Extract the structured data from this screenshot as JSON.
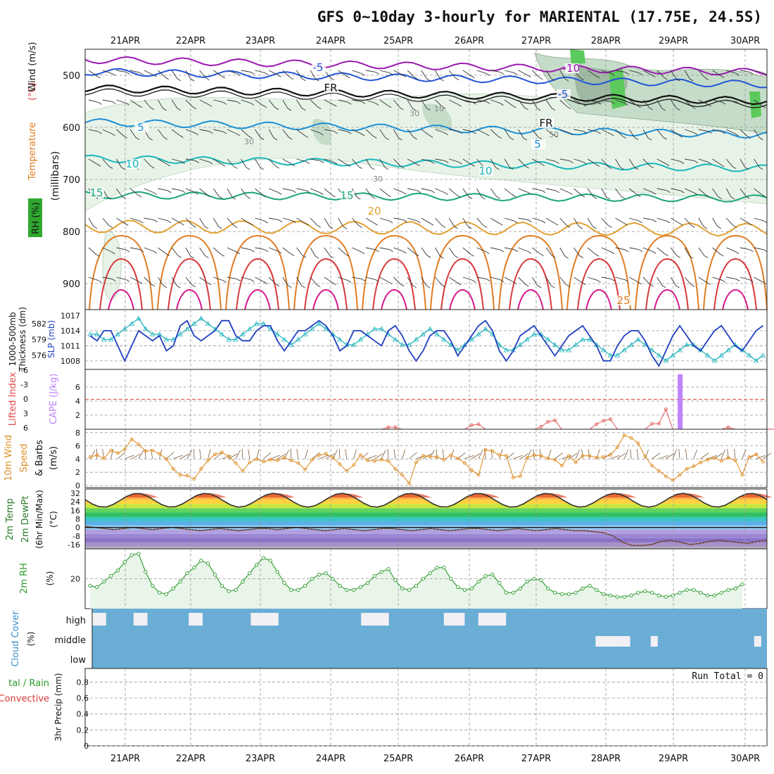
{
  "title": "GFS 0~10day 3-hourly for MARIENTAL (17.75E, 24.5S)",
  "dates": [
    "21APR",
    "22APR",
    "23APR",
    "24APR",
    "25APR",
    "26APR",
    "27APR",
    "28APR",
    "29APR",
    "30APR"
  ],
  "colors": {
    "rh_light": "#e8f3e8",
    "rh_mid": "#c5dcc8",
    "rh_dark": "#9fb9a3",
    "rh_green": "#5cc95c",
    "cloud_bg": "#6aaed6",
    "cloud_patch": "#f2f0f5",
    "slp": "#1f3fbf",
    "thick": "#22b5bf",
    "cape": "#c084fc",
    "li": "#e34848",
    "wind": "#e0902a",
    "rh2m": "#2f9a2f"
  },
  "chart_data": [
    {
      "type": "area",
      "panel": "upper-air",
      "title": "Temperature (°C) Wind (m/s) RH (%)",
      "ylabel": "millibars",
      "ylim": [
        950,
        450
      ],
      "yticks": [
        500,
        600,
        700,
        800,
        900
      ],
      "labels": {
        "y1": "Temperature",
        "y1_unit": "(°C)",
        "y2": "Wind (m/s)",
        "y3": "(millibars)",
        "rh": "RH (%)"
      },
      "contours": [
        {
          "name": "-10",
          "color": "#9a18b0",
          "level": 470,
          "label": "-10"
        },
        {
          "name": "-5",
          "color": "#2255d8",
          "level": 493,
          "label": "-5"
        },
        {
          "name": "FR",
          "color": "#111111",
          "level": 525,
          "label": "FR"
        },
        {
          "name": "5",
          "color": "#1b8fd6",
          "level": 590,
          "label": "5"
        },
        {
          "name": "10",
          "color": "#18b8b8",
          "level": 660,
          "label": "10"
        },
        {
          "name": "15",
          "color": "#1aa67a",
          "level": 730,
          "label": "15"
        },
        {
          "name": "20",
          "color": "#e2a032",
          "level": 790,
          "label": "20"
        },
        {
          "name": "25",
          "color": "#e07c22",
          "level": 850,
          "label": "25"
        }
      ],
      "rh_labels": [
        "30",
        "30",
        "10",
        "50",
        "30"
      ]
    },
    {
      "type": "line",
      "panel": "slp-thickness",
      "labels": {
        "left": "1000-500mb Thickness (dm)",
        "right": "SLP (mb)"
      },
      "left_ticks": [
        582,
        579,
        576
      ],
      "right_ticks": [
        1017,
        1014,
        1011,
        1008
      ],
      "series": [
        {
          "name": "SLP (mb)",
          "values": [
            1013,
            1012,
            1014,
            1014,
            1011,
            1008,
            1011,
            1014,
            1013,
            1012,
            1013,
            1010,
            1011,
            1015,
            1016,
            1013,
            1012,
            1013,
            1014,
            1016,
            1016,
            1013,
            1012,
            1012,
            1014,
            1015,
            1015,
            1012,
            1010,
            1012,
            1014,
            1014,
            1015,
            1016,
            1015,
            1013,
            1010,
            1011,
            1014,
            1014,
            1013,
            1012,
            1011,
            1014,
            1015,
            1013,
            1010,
            1008,
            1010,
            1013,
            1014,
            1014,
            1012,
            1009,
            1011,
            1013,
            1015,
            1016,
            1014,
            1010,
            1008,
            1010,
            1013,
            1014,
            1015,
            1013,
            1011,
            1009,
            1011,
            1013,
            1014,
            1015,
            1013,
            1011,
            1008,
            1008,
            1011,
            1013,
            1014,
            1014,
            1012,
            1009,
            1007,
            1010,
            1013,
            1015,
            1013,
            1011,
            1010,
            1012,
            1014,
            1015,
            1013,
            1011,
            1010,
            1012,
            1014,
            1015
          ]
        },
        {
          "name": "1000-500mb Thickness (dm)",
          "values": [
            580,
            580,
            579,
            579,
            580,
            581,
            582,
            583,
            581,
            580,
            580,
            579,
            579,
            580,
            581,
            582,
            583,
            582,
            581,
            580,
            579,
            579,
            580,
            581,
            582,
            582,
            581,
            580,
            579,
            578,
            579,
            580,
            581,
            582,
            581,
            580,
            579,
            578,
            578,
            579,
            580,
            581,
            581,
            580,
            579,
            578,
            578,
            579,
            580,
            581,
            580,
            579,
            578,
            577,
            578,
            579,
            580,
            581,
            580,
            578,
            577,
            577,
            578,
            579,
            580,
            580,
            579,
            578,
            577,
            577,
            578,
            579,
            579,
            578,
            577,
            576,
            576,
            577,
            578,
            579,
            578,
            577,
            576,
            575,
            576,
            577,
            578,
            578,
            577,
            576,
            575,
            576,
            577,
            578,
            577,
            576,
            575,
            576
          ]
        }
      ]
    },
    {
      "type": "bar",
      "panel": "cape-li",
      "labels": {
        "left": "Lifted Index",
        "right": "CAPE (J/kg)"
      },
      "left_ticks": [
        "-6",
        "-3",
        "0",
        "3",
        "6"
      ],
      "right_ticks": [
        2,
        4,
        6
      ],
      "li_values": [
        6,
        6,
        6,
        6,
        6,
        6,
        6,
        6,
        6,
        6,
        6,
        6,
        6,
        6,
        6,
        6,
        6,
        6,
        6,
        6,
        6,
        6,
        6,
        6,
        6,
        6,
        6,
        6,
        6,
        6,
        6,
        6,
        6,
        6,
        6,
        6,
        6,
        6,
        6,
        6,
        6,
        6,
        6,
        5.6,
        5.6,
        6,
        6,
        6,
        6,
        6,
        6,
        6,
        6,
        6,
        6,
        5.2,
        5.0,
        6,
        6,
        6,
        6,
        6,
        6,
        6,
        6,
        5.5,
        4.5,
        4.2,
        6,
        6,
        6,
        6,
        6,
        5.0,
        4.3,
        4.0,
        6,
        6,
        6,
        6,
        6,
        4.9,
        4.9,
        2.0,
        6,
        6,
        6,
        6,
        6,
        6,
        6,
        6,
        5.6,
        6,
        6,
        6,
        6,
        6,
        6,
        6
      ],
      "cape_values": [
        0,
        0,
        0,
        0,
        0,
        0,
        0,
        0,
        0,
        0,
        0,
        0,
        0,
        0,
        0,
        0,
        0,
        0,
        0,
        0,
        0,
        0,
        0,
        0,
        0,
        0,
        0,
        0,
        0,
        0,
        0,
        0,
        0,
        0,
        0,
        0,
        0,
        0,
        0,
        0,
        0,
        0,
        0,
        0,
        0,
        0,
        0,
        0,
        0,
        0,
        0,
        0,
        0,
        0,
        0,
        0,
        0,
        0,
        0,
        0,
        0,
        0,
        0,
        0,
        0,
        0,
        0,
        0,
        0,
        0,
        0,
        0,
        0,
        0,
        0,
        0,
        0,
        0,
        0,
        0,
        0,
        0,
        0,
        0,
        0,
        7.8,
        0,
        0,
        0,
        0,
        0,
        0,
        0,
        0,
        0,
        0,
        0,
        0
      ]
    },
    {
      "type": "line",
      "panel": "wind",
      "labels": {
        "left": "10m Wind Speed & Barbs (m/s)"
      },
      "yticks": [
        0,
        2,
        4,
        6,
        8
      ],
      "ylim": [
        0,
        8
      ],
      "values": [
        4.3,
        4.6,
        4.1,
        5.3,
        4.9,
        5.5,
        7.0,
        6.2,
        5.2,
        5.3,
        4.8,
        4.0,
        2.5,
        1.6,
        1.5,
        1.0,
        2.5,
        3.8,
        4.7,
        5.0,
        4.4,
        3.4,
        2.2,
        3.5,
        4.0,
        3.6,
        3.9,
        3.8,
        4.2,
        3.8,
        3.4,
        2.4,
        3.9,
        4.6,
        4.8,
        4.2,
        3.2,
        2.2,
        3.1,
        4.6,
        3.8,
        3.7,
        3.9,
        3.7,
        2.5,
        1.6,
        0.3,
        3.5,
        4.5,
        4.4,
        4.3,
        3.9,
        4.6,
        4.1,
        3.4,
        2.3,
        1.6,
        5.4,
        5.2,
        4.6,
        4.5,
        1.2,
        1.4,
        4.2,
        4.6,
        4.5,
        4.1,
        3.9,
        3.0,
        4.5,
        3.5,
        4.5,
        4.5,
        4.2,
        4.3,
        4.6,
        5.8,
        7.6,
        7.2,
        6.4,
        4.4,
        3.0,
        2.2,
        1.4,
        0.8,
        1.6,
        2.5,
        2.9,
        3.5,
        3.9,
        4.2,
        3.7,
        4.2,
        3.8,
        1.6,
        4.3,
        4.7,
        3.6
      ]
    },
    {
      "type": "area",
      "panel": "temperature",
      "labels": {
        "left": "2m Temp",
        "left2": "2m DewPt",
        "left3": "(6hr Min/Max) (°C)"
      },
      "yticks": [
        32,
        24,
        16,
        8,
        0,
        -8,
        -16
      ],
      "ylim": [
        -20,
        36
      ],
      "temp_values": [
        21,
        22,
        24,
        28,
        30,
        29,
        26,
        22
      ],
      "dewpt_values": [
        1,
        0,
        -1,
        -2,
        -1,
        0,
        -1,
        -2,
        -1,
        0,
        -1,
        -2,
        -3,
        -2,
        -1,
        -2,
        -3,
        -2,
        -1,
        -1,
        -2,
        -1,
        0,
        -1,
        -2,
        -3,
        -2,
        -1,
        -2,
        -3,
        -2,
        -1,
        -1,
        -2,
        -3,
        -2,
        -1,
        -2,
        -3,
        -2,
        -1,
        -1,
        -2,
        -3,
        -2,
        -1,
        -2,
        -3,
        -2,
        -1,
        -2,
        -3,
        -3,
        -4,
        -5,
        -8,
        -14,
        -17,
        -17,
        -16,
        -13,
        -12,
        -14,
        -16,
        -15,
        -13,
        -12,
        -13,
        -14,
        -15,
        -13,
        -12
      ]
    },
    {
      "type": "area",
      "panel": "rh2m",
      "labels": {
        "left": "2m RH",
        "unit": "(%)"
      },
      "yticks": [
        20
      ],
      "ylim": [
        0,
        40
      ],
      "values": [
        15,
        14,
        18,
        22,
        26,
        32,
        37,
        38,
        25,
        15,
        10,
        9,
        13,
        18,
        24,
        28,
        33,
        31,
        23,
        15,
        11,
        12,
        18,
        24,
        30,
        35,
        33,
        25,
        17,
        12,
        12,
        15,
        20,
        23,
        24,
        20,
        15,
        12,
        12,
        14,
        17,
        22,
        25,
        27,
        19,
        13,
        12,
        15,
        20,
        24,
        28,
        28,
        20,
        14,
        12,
        13,
        18,
        22,
        23,
        17,
        10,
        10,
        13,
        18,
        20,
        19,
        13,
        10,
        9,
        9,
        10,
        13,
        15,
        12,
        9,
        8,
        7,
        7,
        8,
        10,
        11,
        10,
        8,
        7,
        8,
        10,
        12,
        12,
        10,
        8,
        8,
        10,
        12,
        13,
        16
      ]
    },
    {
      "type": "heatmap",
      "panel": "cloud",
      "labels": {
        "left": "Cloud Cover (%)",
        "levels": [
          "high",
          "middle",
          "low"
        ]
      },
      "high": [
        1,
        1,
        0,
        0,
        0,
        0,
        1,
        1,
        0,
        0,
        0,
        0,
        0,
        0,
        1,
        1,
        0,
        0,
        0,
        0,
        0,
        0,
        0,
        1,
        1,
        1,
        1,
        0,
        0,
        0,
        0,
        0,
        0,
        0,
        0,
        0,
        0,
        0,
        0,
        1,
        1,
        1,
        1,
        0,
        0,
        0,
        0,
        0,
        0,
        0,
        0,
        1,
        1,
        1,
        0,
        0,
        1,
        1,
        1,
        1,
        0,
        0,
        0,
        0,
        0,
        0,
        0,
        0,
        0,
        0,
        0,
        0,
        0,
        0,
        0,
        0,
        0,
        0,
        0,
        0,
        0,
        0,
        0,
        0,
        0,
        0,
        0,
        0,
        0,
        0,
        0,
        0,
        0,
        0,
        0,
        0,
        0,
        0
      ],
      "middle": [
        0,
        0,
        0,
        0,
        0,
        0,
        0,
        0,
        0,
        0,
        0,
        0,
        0,
        0,
        0,
        0,
        0,
        0,
        0,
        0,
        0,
        0,
        0,
        0,
        0,
        0,
        0,
        0,
        0,
        0,
        0,
        0,
        0,
        0,
        0,
        0,
        0,
        0,
        0,
        0,
        0,
        0,
        0,
        0,
        0,
        0,
        0,
        0,
        0,
        0,
        0,
        0,
        0,
        0,
        0,
        0,
        0,
        0,
        0,
        0,
        0,
        0,
        0,
        0,
        0,
        0,
        0,
        0,
        0,
        0,
        0,
        0,
        0,
        1,
        1,
        1,
        1,
        1,
        0,
        0,
        0,
        1,
        0,
        0,
        0,
        0,
        0,
        0,
        0,
        0,
        0,
        0,
        0,
        0,
        0,
        0,
        1,
        0
      ]
    },
    {
      "type": "bar",
      "panel": "precip",
      "labels": {
        "left": "Total / Rain",
        "left2": "Convective",
        "left3": "3hr Precip (mm)"
      },
      "yticks": [
        0,
        0.2,
        0.4,
        0.6,
        0.8
      ],
      "ylim": [
        0,
        0.9
      ],
      "run_total_label": "Run Total = 0",
      "values": []
    }
  ]
}
